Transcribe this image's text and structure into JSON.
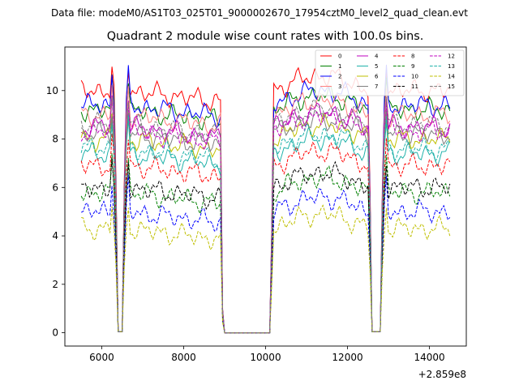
{
  "chart_data": {
    "type": "line",
    "suptitle": "Data file: modeM0/AS1T03_025T01_9000002670_17954cztM0_level2_quad_clean.evt",
    "title": "Quadrant 2 module wise count rates with 100.0s bins.",
    "xlabel": "",
    "ylabel": "",
    "x_offset_label": "+2.859e8",
    "xlim": [
      5100,
      14900
    ],
    "ylim": [
      -0.55,
      11.8
    ],
    "xticks": [
      6000,
      8000,
      10000,
      12000,
      14000
    ],
    "xtick_labels": [
      "6000",
      "8000",
      "10000",
      "12000",
      "14000"
    ],
    "yticks": [
      0,
      2,
      4,
      6,
      8,
      10
    ],
    "ytick_labels": [
      "0",
      "2",
      "4",
      "6",
      "8",
      "10"
    ],
    "legend_position": "top-right",
    "legend_columns": 4,
    "segments": [
      {
        "start": 5500,
        "end": 6300
      },
      {
        "start": 6400,
        "end": 6500
      },
      {
        "start": 6600,
        "end": 8900
      },
      {
        "start": 9000,
        "end": 10100
      },
      {
        "start": 10200,
        "end": 12500
      },
      {
        "start": 12600,
        "end": 12800
      },
      {
        "start": 12900,
        "end": 14500
      }
    ],
    "series": [
      {
        "name": "0",
        "color": "#ff0000",
        "dash": "solid",
        "level": 10.0
      },
      {
        "name": "1",
        "color": "#008000",
        "dash": "solid",
        "level": 9.2
      },
      {
        "name": "2",
        "color": "#0000ff",
        "dash": "solid",
        "level": 9.4
      },
      {
        "name": "3",
        "color": "#ff7f7f",
        "dash": "solid",
        "level": 9.0
      },
      {
        "name": "4",
        "color": "#bf00bf",
        "dash": "solid",
        "level": 8.5
      },
      {
        "name": "5",
        "color": "#20b2aa",
        "dash": "solid",
        "level": 7.4
      },
      {
        "name": "6",
        "color": "#bfbf00",
        "dash": "solid",
        "level": 8.0
      },
      {
        "name": "7",
        "color": "#7f7f7f",
        "dash": "solid",
        "level": 8.2
      },
      {
        "name": "8",
        "color": "#ff0000",
        "dash": "dashed",
        "level": 6.9
      },
      {
        "name": "9",
        "color": "#008000",
        "dash": "dashed",
        "level": 5.8
      },
      {
        "name": "10",
        "color": "#0000ff",
        "dash": "dashed",
        "level": 5.0
      },
      {
        "name": "11",
        "color": "#000000",
        "dash": "dashed",
        "level": 6.0
      },
      {
        "name": "12",
        "color": "#bf00bf",
        "dash": "dashed",
        "level": 8.3
      },
      {
        "name": "13",
        "color": "#20b2aa",
        "dash": "dashed",
        "level": 7.6
      },
      {
        "name": "14",
        "color": "#bfbf00",
        "dash": "dashed",
        "level": 4.3
      },
      {
        "name": "15",
        "color": "#7f7f7f",
        "dash": "dashed",
        "level": 8.6
      }
    ]
  }
}
